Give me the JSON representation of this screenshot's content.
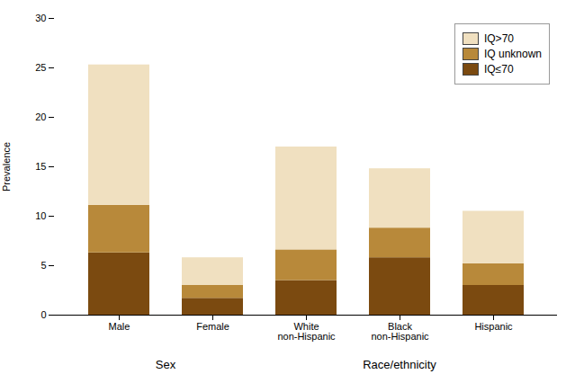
{
  "chart_data": {
    "type": "bar",
    "stacked": true,
    "categories": [
      "Male",
      "Female",
      "White\nnon-Hispanic",
      "Black\nnon-Hispanic",
      "Hispanic"
    ],
    "series": [
      {
        "name": "IQ≤70",
        "color": "#7B4A10",
        "values": [
          6.3,
          1.7,
          3.5,
          5.8,
          3.0
        ]
      },
      {
        "name": "IQ unknown",
        "color": "#B8893A",
        "values": [
          4.8,
          1.3,
          3.1,
          3.0,
          2.2
        ]
      },
      {
        "name": "IQ>70",
        "color": "#F0E0C0",
        "values": [
          14.2,
          2.8,
          10.4,
          6.0,
          5.3
        ]
      }
    ],
    "ylabel": "Prevalence",
    "ylim": [
      0,
      30
    ],
    "yticks": [
      0,
      5,
      10,
      15,
      20,
      25,
      30
    ],
    "grid": false,
    "legend": "upper right",
    "groups": [
      {
        "label": "Sex",
        "categories": [
          "Male",
          "Female"
        ]
      },
      {
        "label": "Race/ethnicity",
        "categories": [
          "White\nnon-Hispanic",
          "Black\nnon-Hispanic",
          "Hispanic"
        ]
      }
    ]
  }
}
